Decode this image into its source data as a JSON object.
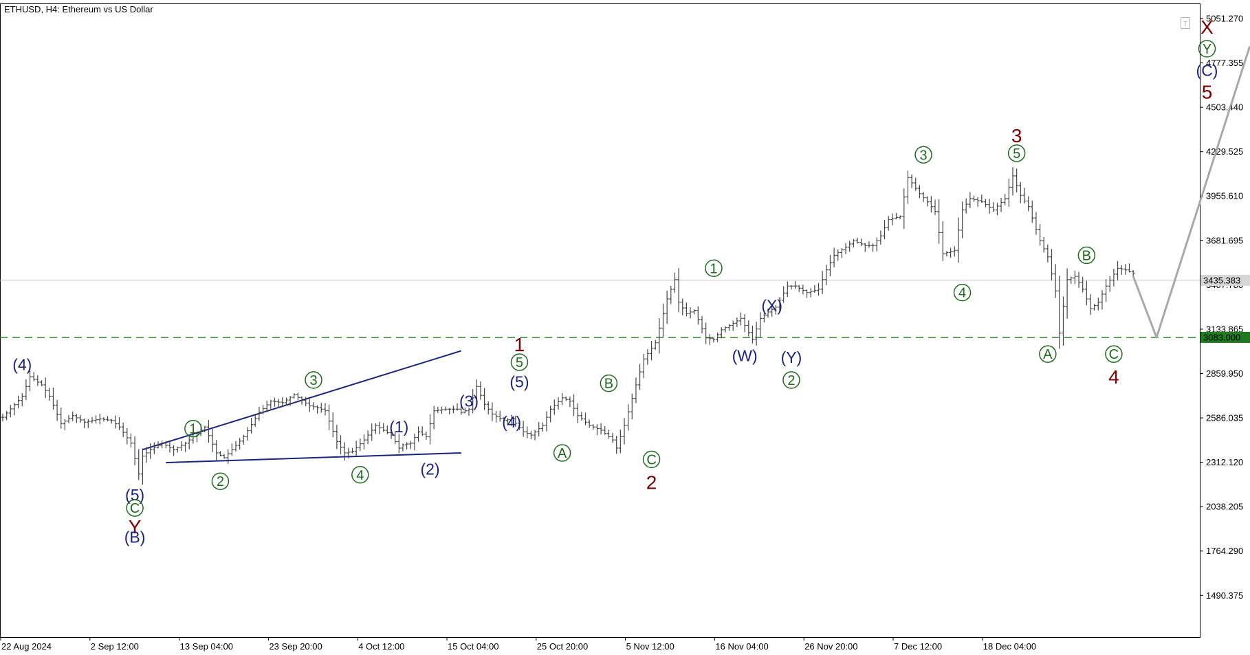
{
  "chart_data": {
    "type": "candlestick",
    "title": "ETHUSD, H4:  Ethereum vs US Dollar",
    "x_ticks": [
      "22 Aug 2024",
      "2 Sep 12:00",
      "13 Sep 04:00",
      "23 Sep 20:00",
      "4 Oct 12:00",
      "15 Oct 04:00",
      "25 Oct 20:00",
      "5 Nov 12:00",
      "16 Nov 04:00",
      "26 Nov 20:00",
      "7 Dec 12:00",
      "18 Dec 04:00"
    ],
    "y_ticks": [
      "5051.270",
      "4777.355",
      "4503.440",
      "4229.525",
      "3955.610",
      "3681.695",
      "3407.780",
      "3133.865",
      "2859.950",
      "2586.035",
      "2312.120",
      "2038.205",
      "1764.290",
      "1490.375"
    ],
    "ylim": [
      1280,
      5100
    ],
    "current_price": {
      "value": 3435.383,
      "label": "3435.383"
    },
    "level": {
      "value": 3083.0,
      "label": "3083.000"
    },
    "price_path": [
      [
        0,
        2590
      ],
      [
        5,
        2720
      ],
      [
        7,
        2840
      ],
      [
        10,
        2790
      ],
      [
        12,
        2720
      ],
      [
        15,
        2550
      ],
      [
        18,
        2600
      ],
      [
        21,
        2560
      ],
      [
        25,
        2580
      ],
      [
        28,
        2570
      ],
      [
        30,
        2530
      ],
      [
        33,
        2430
      ],
      [
        35,
        2240
      ],
      [
        36,
        2350
      ],
      [
        38,
        2390
      ],
      [
        41,
        2430
      ],
      [
        44,
        2390
      ],
      [
        47,
        2430
      ],
      [
        52,
        2530
      ],
      [
        55,
        2370
      ],
      [
        57,
        2340
      ],
      [
        59,
        2390
      ],
      [
        62,
        2470
      ],
      [
        66,
        2620
      ],
      [
        69,
        2690
      ],
      [
        72,
        2680
      ],
      [
        75,
        2730
      ],
      [
        79,
        2660
      ],
      [
        81,
        2650
      ],
      [
        83,
        2630
      ],
      [
        86,
        2440
      ],
      [
        88,
        2370
      ],
      [
        90,
        2380
      ],
      [
        93,
        2450
      ],
      [
        96,
        2540
      ],
      [
        98,
        2510
      ],
      [
        100,
        2480
      ],
      [
        102,
        2400
      ],
      [
        103,
        2420
      ],
      [
        105,
        2430
      ],
      [
        107,
        2500
      ],
      [
        109,
        2470
      ],
      [
        111,
        2630
      ],
      [
        114,
        2640
      ],
      [
        117,
        2640
      ],
      [
        118,
        2620
      ],
      [
        120,
        2640
      ],
      [
        122,
        2780
      ],
      [
        124,
        2670
      ],
      [
        126,
        2610
      ],
      [
        129,
        2570
      ],
      [
        131,
        2580
      ],
      [
        134,
        2500
      ],
      [
        136,
        2480
      ],
      [
        139,
        2540
      ],
      [
        141,
        2640
      ],
      [
        144,
        2710
      ],
      [
        146,
        2690
      ],
      [
        148,
        2600
      ],
      [
        151,
        2540
      ],
      [
        154,
        2510
      ],
      [
        157,
        2450
      ],
      [
        158,
        2400
      ],
      [
        160,
        2540
      ],
      [
        163,
        2790
      ],
      [
        165,
        2950
      ],
      [
        168,
        3050
      ],
      [
        171,
        3320
      ],
      [
        173,
        3440
      ],
      [
        174,
        3300
      ],
      [
        176,
        3230
      ],
      [
        178,
        3250
      ],
      [
        181,
        3080
      ],
      [
        183,
        3070
      ],
      [
        185,
        3130
      ],
      [
        188,
        3170
      ],
      [
        190,
        3200
      ],
      [
        193,
        3070
      ],
      [
        195,
        3200
      ],
      [
        197,
        3240
      ],
      [
        199,
        3270
      ],
      [
        202,
        3400
      ],
      [
        204,
        3400
      ],
      [
        207,
        3360
      ],
      [
        210,
        3380
      ],
      [
        212,
        3500
      ],
      [
        214,
        3590
      ],
      [
        217,
        3640
      ],
      [
        219,
        3680
      ],
      [
        222,
        3650
      ],
      [
        224,
        3650
      ],
      [
        226,
        3710
      ],
      [
        228,
        3810
      ],
      [
        231,
        3830
      ],
      [
        233,
        4070
      ],
      [
        236,
        3970
      ],
      [
        238,
        3920
      ],
      [
        240,
        3860
      ],
      [
        242,
        3600
      ],
      [
        245,
        3620
      ],
      [
        247,
        3870
      ],
      [
        249,
        3940
      ],
      [
        252,
        3920
      ],
      [
        255,
        3870
      ],
      [
        258,
        3940
      ],
      [
        260,
        4080
      ],
      [
        262,
        3960
      ],
      [
        264,
        3890
      ],
      [
        267,
        3680
      ],
      [
        269,
        3580
      ],
      [
        271,
        3370
      ],
      [
        272,
        3110
      ],
      [
        274,
        3440
      ],
      [
        276,
        3460
      ],
      [
        278,
        3380
      ],
      [
        280,
        3260
      ],
      [
        282,
        3300
      ],
      [
        284,
        3400
      ],
      [
        287,
        3510
      ],
      [
        289,
        3500
      ],
      [
        291,
        3480
      ]
    ],
    "projection": [
      [
        291,
        3460
      ],
      [
        297,
        3083
      ],
      [
        321,
        4880
      ]
    ],
    "lines": [
      {
        "from": [
          36,
          2390
        ],
        "to": [
          118,
          3000
        ]
      },
      {
        "from": [
          42,
          2310
        ],
        "to": [
          118,
          2370
        ]
      }
    ],
    "wave_labels": [
      {
        "text": "(4)",
        "style": "paren",
        "color": "#1a237e",
        "x": 5,
        "y": 2915
      },
      {
        "text": "(5)",
        "style": "paren",
        "color": "#1a237e",
        "x": 34,
        "y": 2110
      },
      {
        "text": "C",
        "style": "circled",
        "color": "#1e6b1e",
        "x": 34,
        "y": 2030
      },
      {
        "text": "Y",
        "style": "plain",
        "color": "#7a0000",
        "x": 34,
        "y": 1915
      },
      {
        "text": "(B)",
        "style": "paren",
        "color": "#1a237e",
        "x": 34,
        "y": 1850
      },
      {
        "text": "1",
        "style": "circled",
        "color": "#1e6b1e",
        "x": 49,
        "y": 2520
      },
      {
        "text": "2",
        "style": "circled",
        "color": "#1e6b1e",
        "x": 56,
        "y": 2195
      },
      {
        "text": "3",
        "style": "circled",
        "color": "#1e6b1e",
        "x": 80,
        "y": 2820
      },
      {
        "text": "4",
        "style": "circled",
        "color": "#1e6b1e",
        "x": 92,
        "y": 2235
      },
      {
        "text": "(1)",
        "style": "paren",
        "color": "#1a237e",
        "x": 102,
        "y": 2530
      },
      {
        "text": "(2)",
        "style": "paren",
        "color": "#1a237e",
        "x": 110,
        "y": 2270
      },
      {
        "text": "(3)",
        "style": "paren",
        "color": "#1a237e",
        "x": 120,
        "y": 2690
      },
      {
        "text": "(4)",
        "style": "paren",
        "color": "#1a237e",
        "x": 131,
        "y": 2560
      },
      {
        "text": "(5)",
        "style": "paren",
        "color": "#1a237e",
        "x": 133,
        "y": 2810
      },
      {
        "text": "5",
        "style": "circled",
        "color": "#1e6b1e",
        "x": 133,
        "y": 2930
      },
      {
        "text": "1",
        "style": "plain",
        "color": "#7a0000",
        "x": 133,
        "y": 3040
      },
      {
        "text": "A",
        "style": "circled",
        "color": "#1e6b1e",
        "x": 144,
        "y": 2370
      },
      {
        "text": "B",
        "style": "circled",
        "color": "#1e6b1e",
        "x": 156,
        "y": 2800
      },
      {
        "text": "C",
        "style": "circled",
        "color": "#1e6b1e",
        "x": 167,
        "y": 2330
      },
      {
        "text": "2",
        "style": "plain",
        "color": "#7a0000",
        "x": 167,
        "y": 2190
      },
      {
        "text": "1",
        "style": "circled",
        "color": "#1e6b1e",
        "x": 183,
        "y": 3510
      },
      {
        "text": "(W)",
        "style": "paren",
        "color": "#1a237e",
        "x": 191,
        "y": 2970
      },
      {
        "text": "(X)",
        "style": "paren",
        "color": "#1a237e",
        "x": 198,
        "y": 3280
      },
      {
        "text": "(Y)",
        "style": "paren",
        "color": "#1a237e",
        "x": 203,
        "y": 2960
      },
      {
        "text": "2",
        "style": "circled",
        "color": "#1e6b1e",
        "x": 203,
        "y": 2820
      },
      {
        "text": "3",
        "style": "circled",
        "color": "#1e6b1e",
        "x": 237,
        "y": 4210
      },
      {
        "text": "3",
        "style": "plain",
        "color": "#7a0000",
        "x": 261,
        "y": 4330
      },
      {
        "text": "5",
        "style": "circled",
        "color": "#1e6b1e",
        "x": 261,
        "y": 4220
      },
      {
        "text": "4",
        "style": "circled",
        "color": "#1e6b1e",
        "x": 247,
        "y": 3360
      },
      {
        "text": "A",
        "style": "circled",
        "color": "#1e6b1e",
        "x": 269,
        "y": 2980
      },
      {
        "text": "B",
        "style": "circled",
        "color": "#1e6b1e",
        "x": 279,
        "y": 3590
      },
      {
        "text": "C",
        "style": "circled",
        "color": "#1e6b1e",
        "x": 286,
        "y": 2980
      },
      {
        "text": "4",
        "style": "plain",
        "color": "#7a0000",
        "x": 286,
        "y": 2840
      },
      {
        "text": "X",
        "style": "plain",
        "color": "#7a0000",
        "x": 310,
        "y": 5000
      },
      {
        "text": "Y",
        "style": "circled",
        "color": "#1e6b1e",
        "x": 310,
        "y": 4865
      },
      {
        "text": "(C)",
        "style": "paren",
        "color": "#1a237e",
        "x": 310,
        "y": 4730
      },
      {
        "text": "5",
        "style": "plain",
        "color": "#7a0000",
        "x": 310,
        "y": 4600
      }
    ],
    "grid": false,
    "colors": {
      "bars": "#444444",
      "projection": "#a8a8a8",
      "trendlines": "#1a237e",
      "level": "#2e7d32",
      "current_price": "#c8c8c8"
    }
  }
}
